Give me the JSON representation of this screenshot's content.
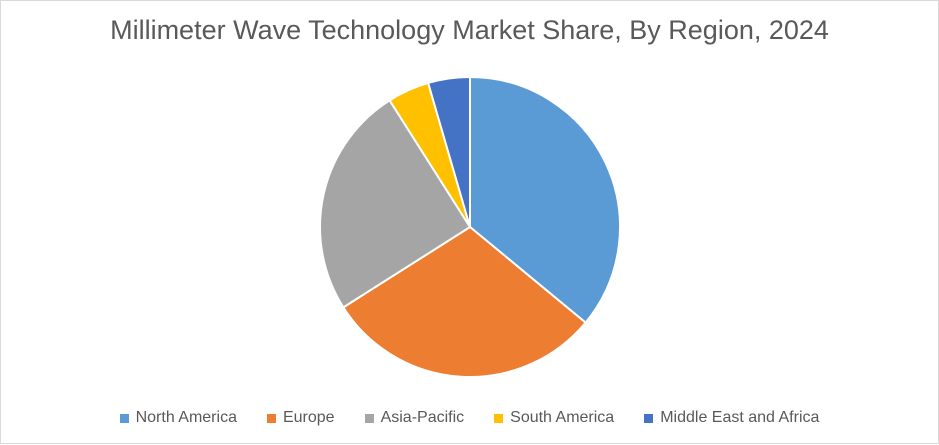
{
  "chart_data": {
    "type": "pie",
    "title": "Millimeter Wave Technology Market Share, By Region, 2024",
    "legend_position": "bottom",
    "slices": [
      {
        "name": "North America",
        "value": 36,
        "color": "#5b9bd5"
      },
      {
        "name": "Europe",
        "value": 30,
        "color": "#ed7d31"
      },
      {
        "name": "Asia-Pacific",
        "value": 25,
        "color": "#a5a5a5"
      },
      {
        "name": "South America",
        "value": 4.5,
        "color": "#ffc000"
      },
      {
        "name": "Middle East and Africa",
        "value": 4.5,
        "color": "#4472c4"
      }
    ]
  }
}
